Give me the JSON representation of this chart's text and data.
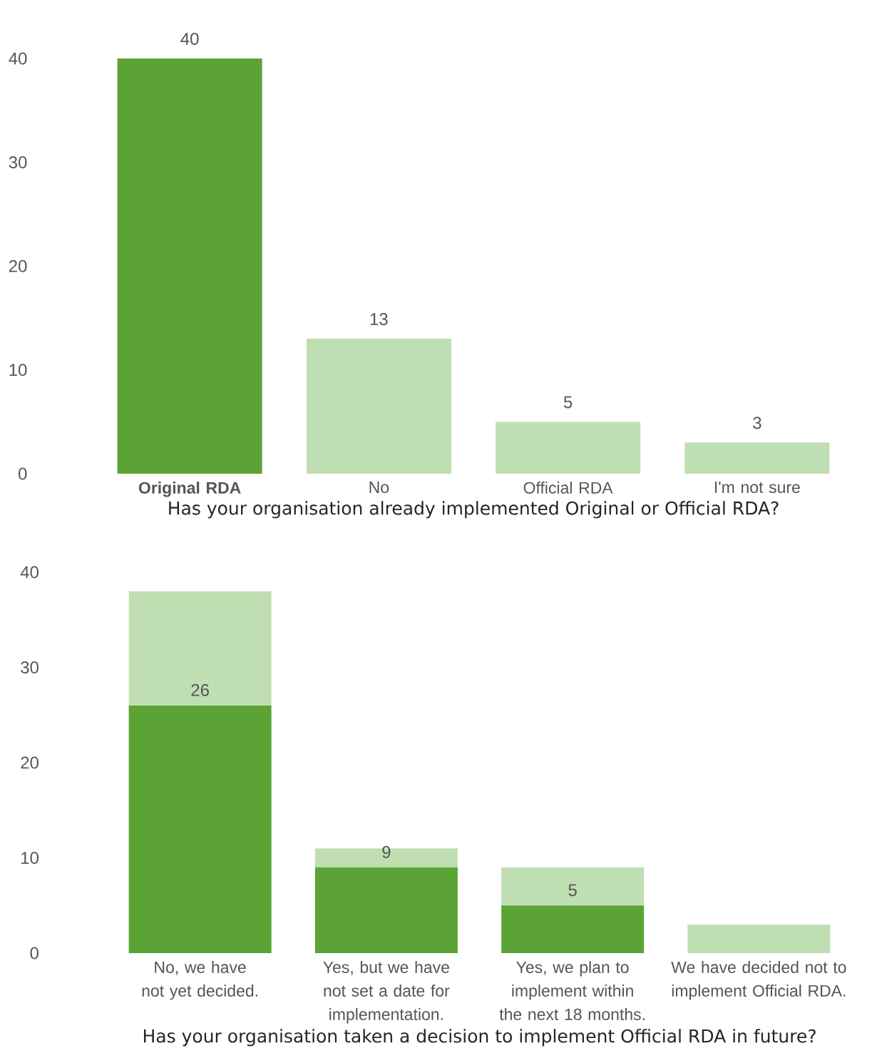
{
  "chart_data": [
    {
      "type": "bar",
      "xlabel": "Has your organisation already implemented Original or Official RDA?",
      "categories": [
        "**Original RDA**",
        "No",
        "Official RDA",
        "I'm not sure"
      ],
      "values": [
        40,
        13,
        5,
        3
      ],
      "colors": [
        "#5ba335",
        "#bfdfb2",
        "#bfdfb2",
        "#bfdfb2"
      ],
      "ylim": [
        0,
        40
      ],
      "yticks": [
        0,
        10,
        20,
        30,
        40
      ],
      "data_labels": true
    },
    {
      "type": "bar",
      "stacked": true,
      "xlabel": "Has your organisation taken a decision to implement Official RDA in future?",
      "categories": [
        "No, we have not yet decided.",
        "Yes, but we have not set a date for implementation.",
        "Yes, we plan to implement within the next 18 months.",
        "We have decided not to implement Official RDA."
      ],
      "series": [
        {
          "color": "#5ba335",
          "values": [
            26,
            9,
            5,
            0
          ],
          "value_labels": [
            "26",
            "9",
            "5",
            null
          ]
        },
        {
          "color": "#bfdfb2",
          "values": [
            12,
            2,
            4,
            3
          ]
        }
      ],
      "ylim": [
        0,
        40
      ],
      "yticks": [
        0,
        10,
        20,
        30,
        40
      ]
    }
  ]
}
